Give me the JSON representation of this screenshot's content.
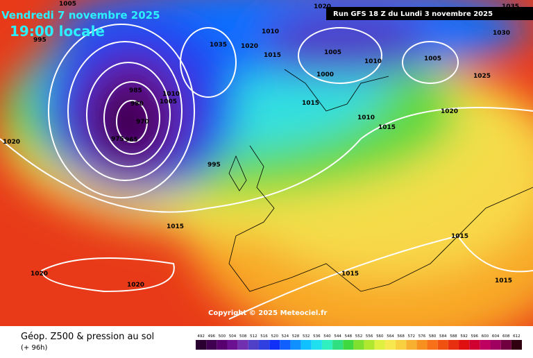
{
  "header": {
    "date": "Vendredi 7 novembre 2025",
    "time": "19:00 locale",
    "run": "Run GFS 18 Z du Lundi 3 novembre 2025"
  },
  "copyright": "Copyright © 2025 Meteociel.fr",
  "isobar_labels": [
    "1005",
    "995",
    "1020",
    "985",
    "980",
    "970",
    "975",
    "965",
    "1010",
    "1035",
    "1020",
    "1015",
    "1005",
    "1000",
    "1010",
    "1005",
    "1030",
    "1025",
    "1015",
    "1010",
    "1015",
    "1020",
    "995",
    "1015",
    "1020",
    "1020",
    "1015",
    "1015",
    "1015",
    "1020",
    "1035",
    "1010",
    "1005"
  ],
  "legend": {
    "title": "Géop. Z500 & pression au sol",
    "subtitle": "(+ 96h)",
    "scale": [
      {
        "value": 492,
        "color": "#2a0030"
      },
      {
        "value": 496,
        "color": "#400050"
      },
      {
        "value": 500,
        "color": "#580070"
      },
      {
        "value": 504,
        "color": "#6a1090"
      },
      {
        "value": 508,
        "color": "#7030b0"
      },
      {
        "value": 512,
        "color": "#5040c8"
      },
      {
        "value": 516,
        "color": "#3040e0"
      },
      {
        "value": 520,
        "color": "#1030f8"
      },
      {
        "value": 524,
        "color": "#1060ff"
      },
      {
        "value": 528,
        "color": "#1090ff"
      },
      {
        "value": 532,
        "color": "#10c0ff"
      },
      {
        "value": 536,
        "color": "#20e0f0"
      },
      {
        "value": 540,
        "color": "#30f0c0"
      },
      {
        "value": 544,
        "color": "#30e080"
      },
      {
        "value": 548,
        "color": "#40d840"
      },
      {
        "value": 552,
        "color": "#80e030"
      },
      {
        "value": 556,
        "color": "#b0e830"
      },
      {
        "value": 560,
        "color": "#e0f040"
      },
      {
        "value": 564,
        "color": "#f8e850"
      },
      {
        "value": 568,
        "color": "#f8d040"
      },
      {
        "value": 572,
        "color": "#f8b030"
      },
      {
        "value": 576,
        "color": "#f89020"
      },
      {
        "value": 580,
        "color": "#f87018"
      },
      {
        "value": 584,
        "color": "#f05010"
      },
      {
        "value": 588,
        "color": "#e83010"
      },
      {
        "value": 592,
        "color": "#e01010"
      },
      {
        "value": 596,
        "color": "#d00030"
      },
      {
        "value": 600,
        "color": "#c00060"
      },
      {
        "value": 604,
        "color": "#a00060"
      },
      {
        "value": 608,
        "color": "#700040"
      },
      {
        "value": 612,
        "color": "#300010"
      }
    ]
  }
}
